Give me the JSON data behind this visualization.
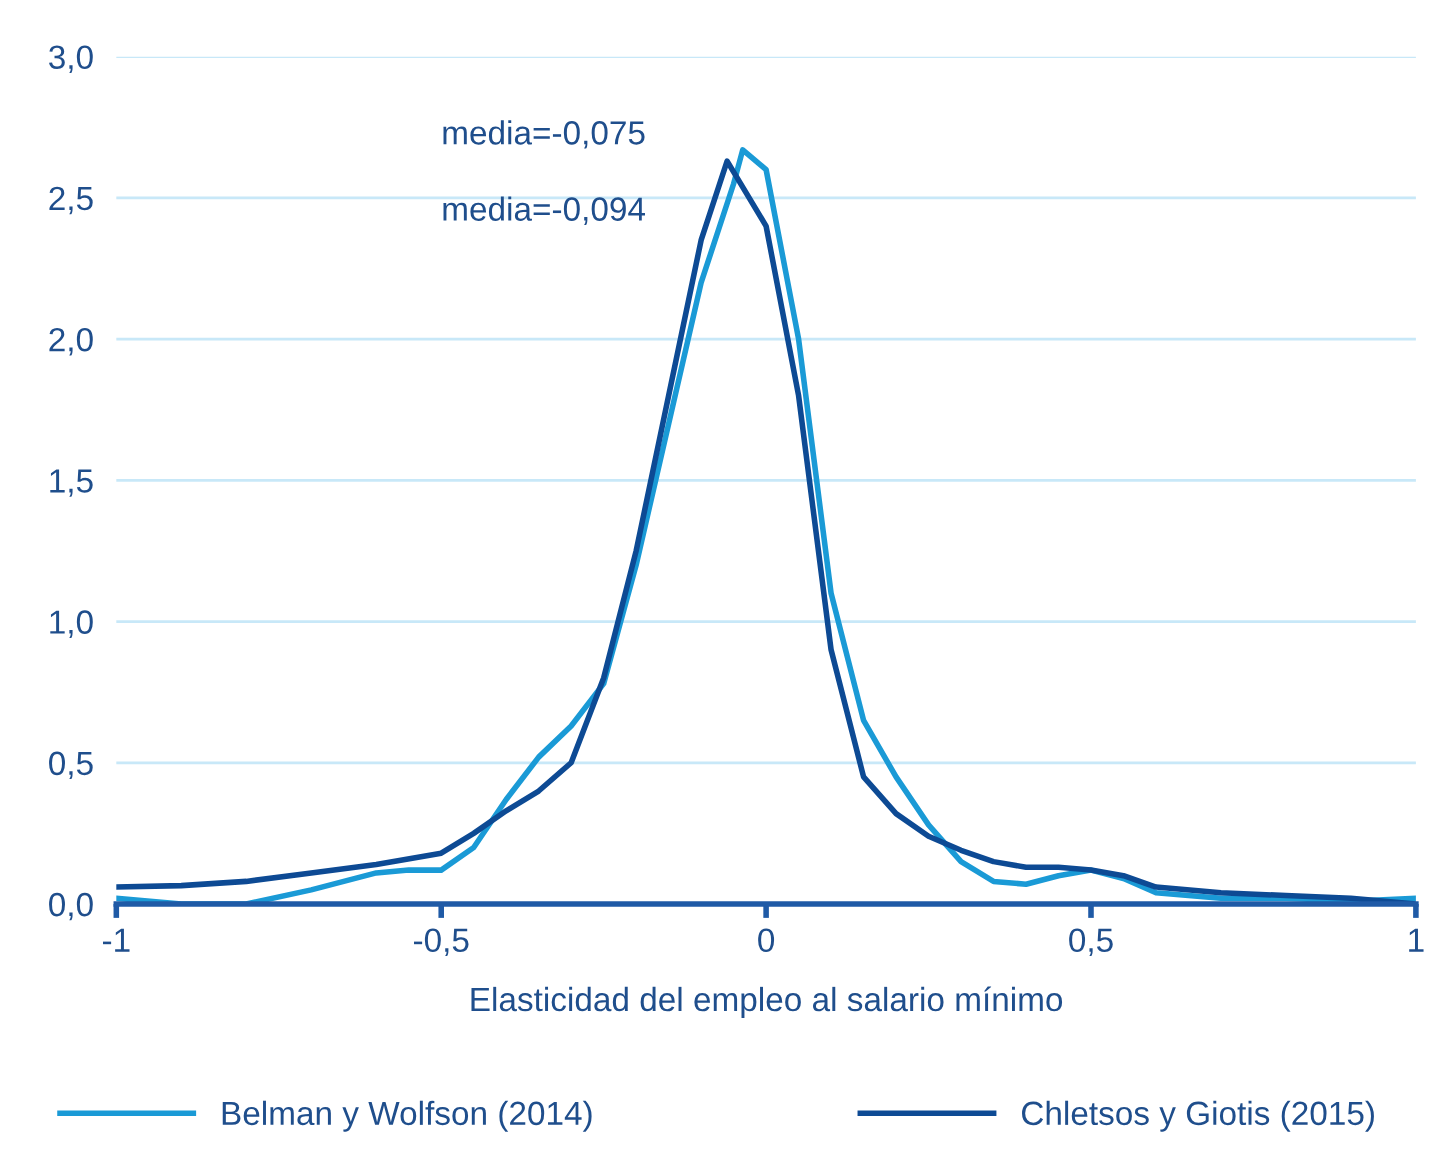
{
  "chart_data": {
    "type": "line",
    "xlabel": "Elasticidad del empleo al salario mínimo",
    "xlim": [
      -1,
      1
    ],
    "xticks": [
      {
        "value": -1,
        "label": "-1"
      },
      {
        "value": -0.5,
        "label": "-0,5"
      },
      {
        "value": 0,
        "label": "0"
      },
      {
        "value": 0.5,
        "label": "0,5"
      },
      {
        "value": 1,
        "label": "1"
      }
    ],
    "ylim": [
      0,
      3
    ],
    "yticks": [
      {
        "value": 0,
        "label": "0,0"
      },
      {
        "value": 0.5,
        "label": "0,5"
      },
      {
        "value": 1,
        "label": "1,0"
      },
      {
        "value": 1.5,
        "label": "1,5"
      },
      {
        "value": 2,
        "label": "2,0"
      },
      {
        "value": 2.5,
        "label": "2,5"
      },
      {
        "value": 3,
        "label": "3,0"
      }
    ],
    "grid": "y",
    "legend": "bottom",
    "marker": "none",
    "line_style": "solid",
    "annotations": [
      "media=-0,075",
      "media=-0,094"
    ],
    "series": [
      {
        "name": "Belman y Wolfson (2014)",
        "color": "#1a9ad6",
        "x": [
          -1,
          -0.9,
          -0.8,
          -0.7,
          -0.6,
          -0.55,
          -0.5,
          -0.45,
          -0.4,
          -0.35,
          -0.3,
          -0.25,
          -0.2,
          -0.15,
          -0.1,
          -0.05,
          -0.036,
          0,
          0.05,
          0.1,
          0.15,
          0.2,
          0.25,
          0.3,
          0.35,
          0.4,
          0.45,
          0.5,
          0.55,
          0.6,
          0.7,
          0.8,
          0.9,
          1
        ],
        "values": [
          0.02,
          0.0,
          0.0,
          0.05,
          0.11,
          0.12,
          0.12,
          0.2,
          0.37,
          0.52,
          0.63,
          0.78,
          1.2,
          1.7,
          2.2,
          2.55,
          2.67,
          2.6,
          2.0,
          1.1,
          0.65,
          0.45,
          0.28,
          0.15,
          0.08,
          0.07,
          0.1,
          0.12,
          0.09,
          0.04,
          0.02,
          0.02,
          0.01,
          0.02
        ]
      },
      {
        "name": "Chletsos y Giotis (2015)",
        "color": "#0d4a94",
        "x": [
          -1,
          -0.9,
          -0.8,
          -0.7,
          -0.6,
          -0.5,
          -0.45,
          -0.4,
          -0.35,
          -0.3,
          -0.25,
          -0.2,
          -0.15,
          -0.1,
          -0.06,
          0,
          0.05,
          0.1,
          0.15,
          0.2,
          0.25,
          0.3,
          0.35,
          0.4,
          0.45,
          0.5,
          0.55,
          0.6,
          0.7,
          0.8,
          0.9,
          1
        ],
        "values": [
          0.06,
          0.065,
          0.08,
          0.11,
          0.14,
          0.18,
          0.25,
          0.33,
          0.4,
          0.5,
          0.8,
          1.25,
          1.8,
          2.35,
          2.63,
          2.4,
          1.8,
          0.9,
          0.45,
          0.32,
          0.24,
          0.19,
          0.15,
          0.13,
          0.13,
          0.12,
          0.1,
          0.06,
          0.04,
          0.03,
          0.02,
          0.0
        ]
      }
    ]
  }
}
